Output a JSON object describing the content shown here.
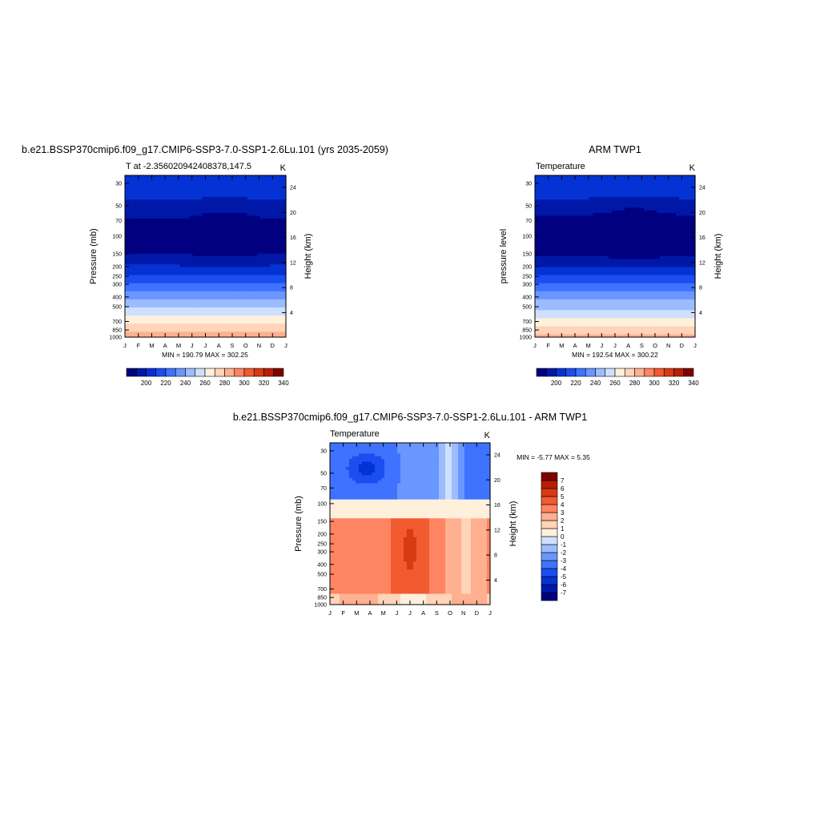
{
  "chart_data": [
    {
      "type": "heatmap",
      "title": "b.e21.BSSP370cmip6.f09_g17.CMIP6-SSP3-7.0-SSP1-2.6Lu.101 (yrs 2035-2059)",
      "subtitle_left": "T at -2.356020942408378,147.5",
      "subtitle_right": "K",
      "xlabel": "",
      "ylabel": "Pressure (mb)",
      "ylabel_right": "Height (km)",
      "x_ticks": [
        "J",
        "F",
        "M",
        "A",
        "M",
        "J",
        "J",
        "A",
        "S",
        "O",
        "N",
        "D",
        "J"
      ],
      "y_ticks": [
        "30",
        "50",
        "70",
        "100",
        "150",
        "200",
        "250",
        "300",
        "400",
        "500",
        "700",
        "850",
        "1000"
      ],
      "y_ticks_right": [
        "24",
        "20",
        "16",
        "12",
        "8",
        "4"
      ],
      "y_scale": "log",
      "ylim": [
        1000,
        25
      ],
      "stats": "MIN = 190.79   MAX = 302.25",
      "colorbar": {
        "orientation": "horizontal",
        "labels": [
          "200",
          "220",
          "240",
          "260",
          "280",
          "300",
          "320",
          "340"
        ]
      },
      "grid": false
    },
    {
      "type": "heatmap",
      "title": "ARM TWP1",
      "subtitle_left": "Temperature",
      "subtitle_right": "K",
      "xlabel": "",
      "ylabel": "pressure level",
      "ylabel_right": "Height (km)",
      "x_ticks": [
        "J",
        "F",
        "M",
        "A",
        "M",
        "J",
        "J",
        "A",
        "S",
        "O",
        "N",
        "D",
        "J"
      ],
      "y_ticks": [
        "30",
        "50",
        "70",
        "100",
        "150",
        "200",
        "250",
        "300",
        "400",
        "500",
        "700",
        "850",
        "1000"
      ],
      "y_ticks_right": [
        "24",
        "20",
        "16",
        "12",
        "8",
        "4"
      ],
      "y_scale": "log",
      "ylim": [
        1000,
        25
      ],
      "stats": "MIN = 192.54   MAX = 300.22",
      "colorbar": {
        "orientation": "horizontal",
        "labels": [
          "200",
          "220",
          "240",
          "260",
          "280",
          "300",
          "320",
          "340"
        ]
      },
      "grid": false
    },
    {
      "type": "heatmap",
      "title": "b.e21.BSSP370cmip6.f09_g17.CMIP6-SSP3-7.0-SSP1-2.6Lu.101 - ARM TWP1",
      "subtitle_left": "Temperature",
      "subtitle_right": "K",
      "xlabel": "",
      "ylabel": "Pressure (mb)",
      "ylabel_right": "Height (km)",
      "x_ticks": [
        "J",
        "F",
        "M",
        "A",
        "M",
        "J",
        "J",
        "A",
        "S",
        "O",
        "N",
        "D",
        "J"
      ],
      "y_ticks": [
        "30",
        "50",
        "70",
        "100",
        "150",
        "200",
        "250",
        "300",
        "400",
        "500",
        "700",
        "850",
        "1000"
      ],
      "y_ticks_right": [
        "24",
        "20",
        "16",
        "12",
        "8",
        "4"
      ],
      "y_scale": "log",
      "ylim": [
        1000,
        25
      ],
      "stats": "MIN =  -5.77   MAX =   5.35",
      "colorbar": {
        "orientation": "vertical",
        "labels": [
          "7",
          "6",
          "5",
          "4",
          "3",
          "2",
          "1",
          "0",
          "-1",
          "-2",
          "-3",
          "-4",
          "-5",
          "-6",
          "-7"
        ]
      },
      "grid": false
    }
  ],
  "colors": {
    "ramp_temperature": [
      "#000080",
      "#0018a8",
      "#0432d4",
      "#1a4ef0",
      "#3e72ff",
      "#6a96ff",
      "#9cbcff",
      "#cfe0ff",
      "#fff0dc",
      "#ffd4b8",
      "#ffb090",
      "#ff8462",
      "#f25a30",
      "#d83a12",
      "#b81e05",
      "#800000"
    ],
    "ramp_difference": [
      "#000080",
      "#0018a8",
      "#0432d4",
      "#1a4ef0",
      "#3e72ff",
      "#6a96ff",
      "#9cbcff",
      "#cfe0ff",
      "#fff0dc",
      "#ffd4b8",
      "#ffb090",
      "#ff8462",
      "#f25a30",
      "#d83a12",
      "#b81e05",
      "#800000"
    ]
  }
}
